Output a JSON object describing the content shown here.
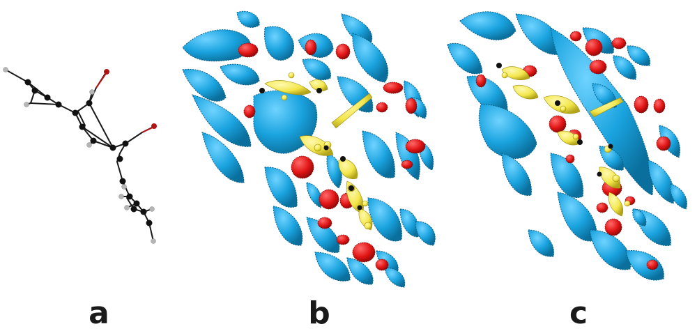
{
  "panels": [
    {
      "label": "a"
    },
    {
      "label": "b"
    },
    {
      "label": "c"
    }
  ],
  "colors": {
    "background": "#ffffff",
    "carbon_atom": "#111111",
    "hydrogen_atom": "#b5b5b5",
    "oxygen_atom": "#b01515",
    "surface_blue": "#1aa3df",
    "surface_blue_dark": "#0a6f9c",
    "surface_red": "#e01414",
    "molecule_yellow": "#f3e64a",
    "label": "#1a1a1a"
  }
}
